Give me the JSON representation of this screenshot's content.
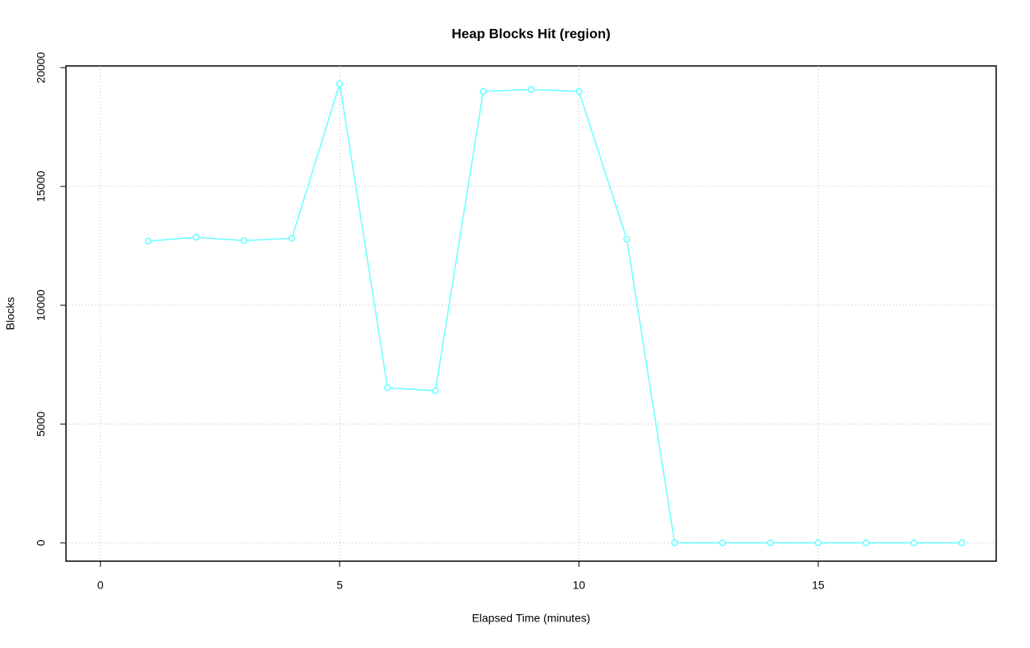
{
  "chart_data": {
    "type": "line",
    "title": "Heap Blocks Hit (region)",
    "x_label": "Elapsed Time (minutes)",
    "y_label": "Blocks",
    "x": [
      1,
      2,
      3,
      4,
      5,
      6,
      7,
      8,
      9,
      10,
      11,
      12,
      13,
      14,
      15,
      16,
      17,
      18
    ],
    "series": [
      {
        "color": "#66ffff",
        "values": [
          12700,
          12860,
          12720,
          12820,
          19320,
          6530,
          6400,
          19000,
          19080,
          19000,
          12780,
          0,
          0,
          0,
          0,
          0,
          0,
          0
        ]
      }
    ],
    "xlim": [
      -0.72,
      18.72
    ],
    "xticks": [
      0,
      5,
      10,
      15
    ],
    "ylim": [
      -772,
      20072
    ],
    "yticks": [
      0,
      5000,
      10000,
      15000,
      20000
    ],
    "grid": true
  }
}
